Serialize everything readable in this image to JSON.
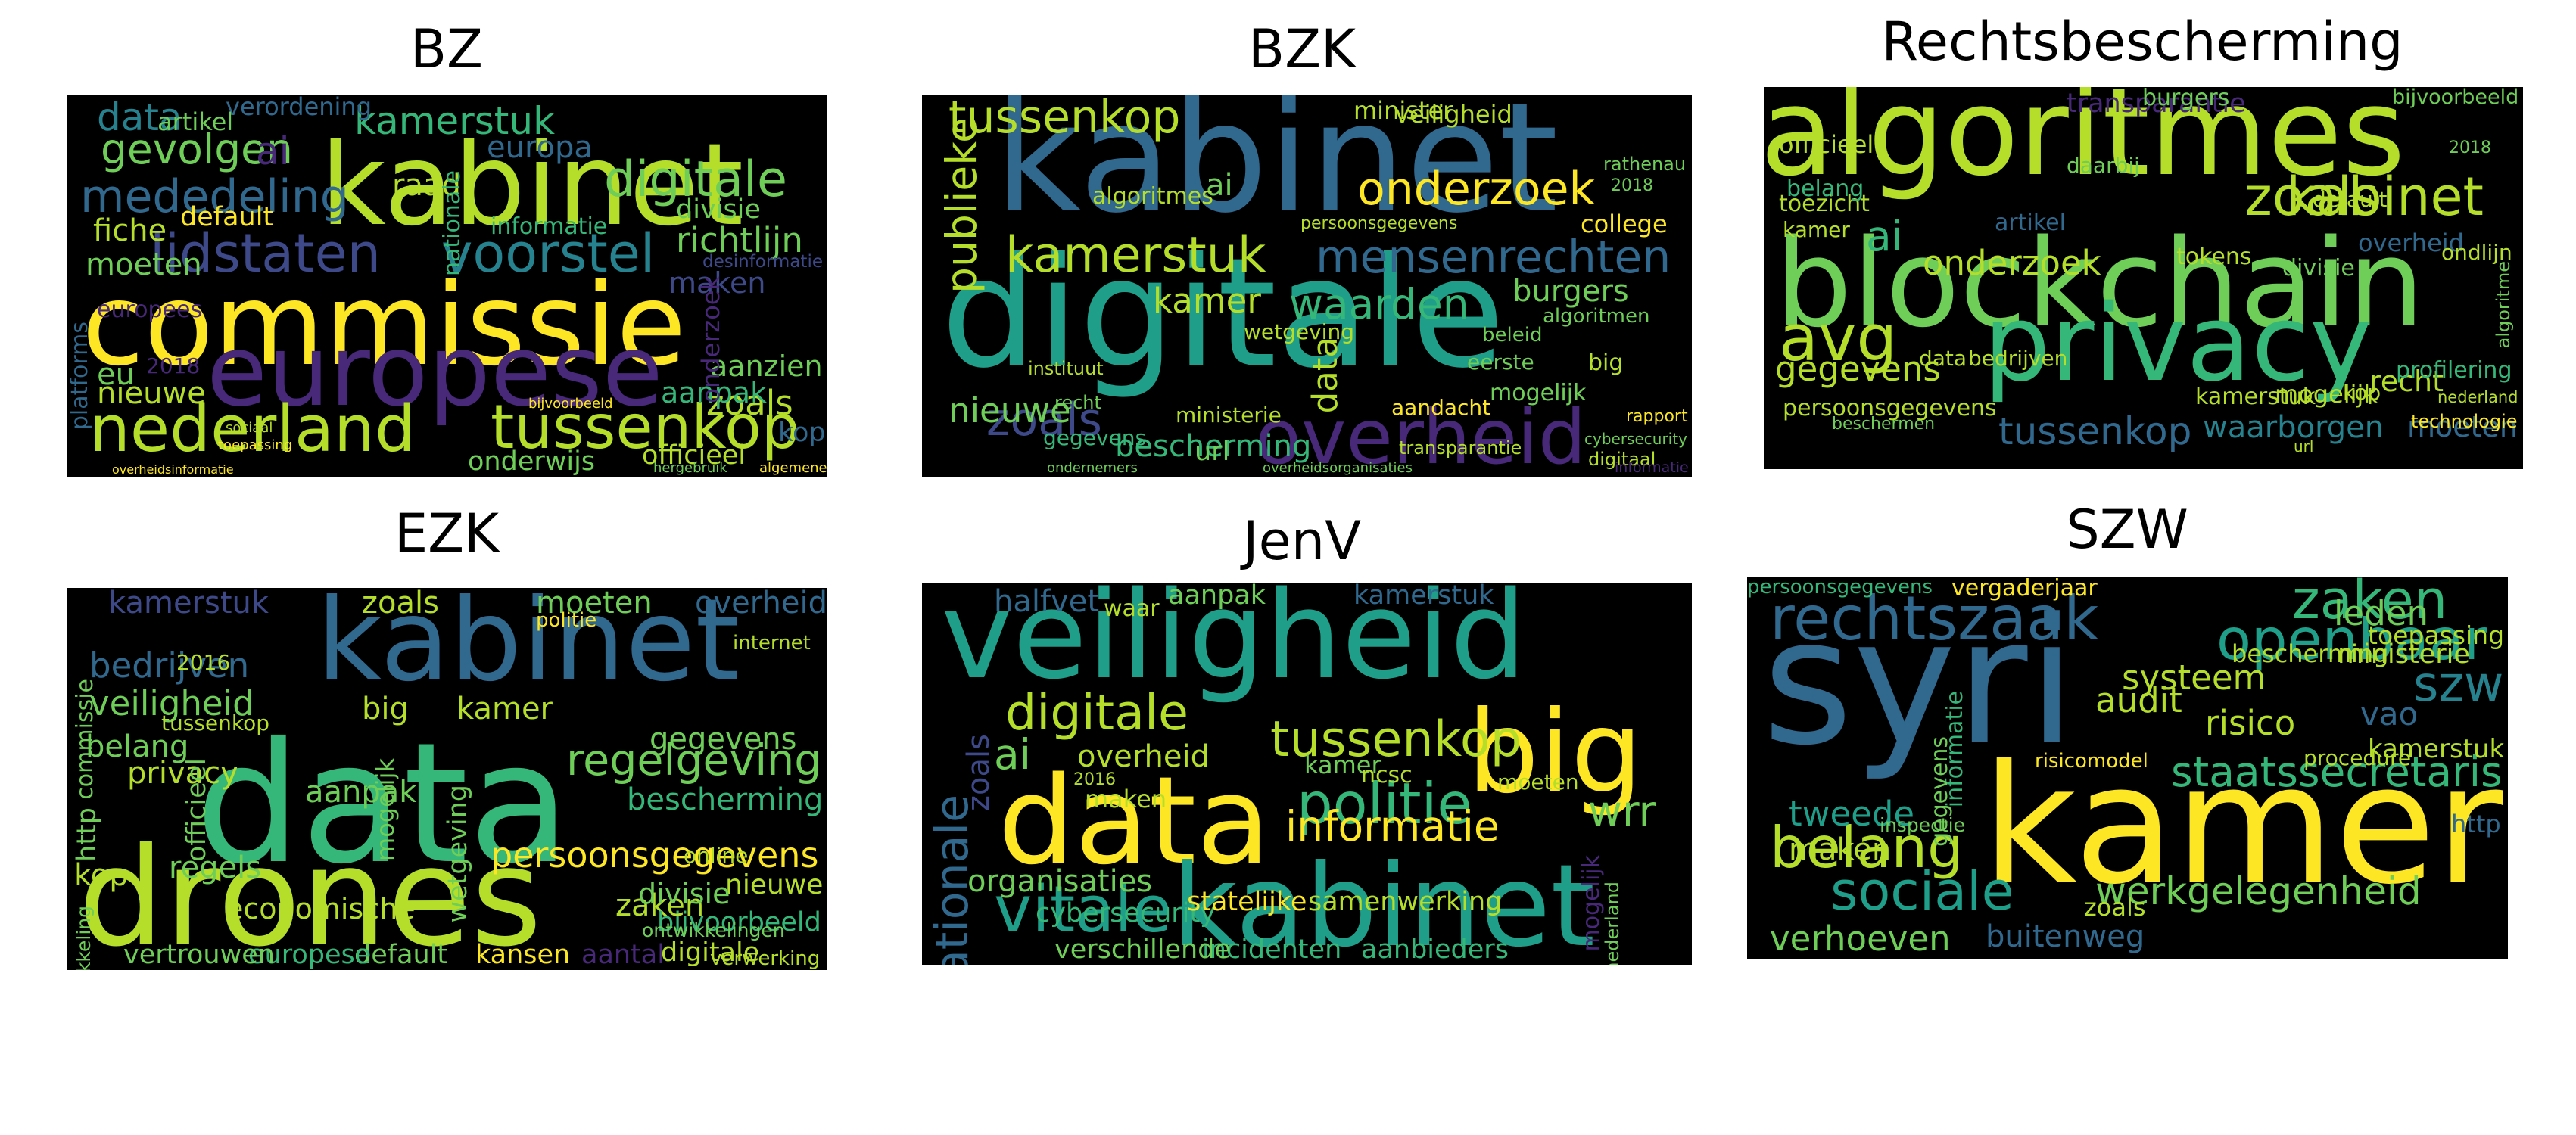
{
  "palette": [
    "#440154",
    "#482878",
    "#3e4989",
    "#31688e",
    "#26828e",
    "#1f9e89",
    "#35b779",
    "#6ece58",
    "#b5de2b",
    "#fde725"
  ],
  "panels": [
    {
      "title": "BZ",
      "words": [
        {
          "t": "commissie",
          "c": "#fde725"
        },
        {
          "t": "kabinet",
          "c": "#b5de2b"
        },
        {
          "t": "europese",
          "c": "#482878"
        },
        {
          "t": "nederland",
          "c": "#b5de2b"
        },
        {
          "t": "tussenkop",
          "c": "#b5de2b"
        },
        {
          "t": "lidstaten",
          "c": "#3e4989"
        },
        {
          "t": "voorstel",
          "c": "#26828e"
        },
        {
          "t": "digitale",
          "c": "#6ece58"
        },
        {
          "t": "mededeling",
          "c": "#31688e"
        },
        {
          "t": "gevolgen",
          "c": "#6ece58"
        },
        {
          "t": "kamerstuk",
          "c": "#35b779"
        },
        {
          "t": "data",
          "c": "#26828e"
        },
        {
          "t": "ai",
          "c": "#482878"
        },
        {
          "t": "raad",
          "c": "#b5de2b"
        },
        {
          "t": "richtlijn",
          "c": "#6ece58"
        },
        {
          "t": "maken",
          "c": "#3e4989"
        },
        {
          "t": "europa",
          "c": "#31688e"
        },
        {
          "t": "fiche",
          "c": "#b5de2b"
        },
        {
          "t": "moeten",
          "c": "#6ece58"
        },
        {
          "t": "platforms",
          "c": "#31688e"
        },
        {
          "t": "zoals",
          "c": "#b5de2b"
        },
        {
          "t": "aanzien",
          "c": "#6ece58"
        },
        {
          "t": "kop",
          "c": "#31688e"
        },
        {
          "t": "nieuwe",
          "c": "#b5de2b"
        },
        {
          "t": "eu",
          "c": "#6ece58"
        },
        {
          "t": "aanpak",
          "c": "#35b779"
        },
        {
          "t": "onderwijs",
          "c": "#6ece58"
        },
        {
          "t": "officieel",
          "c": "#b5de2b"
        },
        {
          "t": "default",
          "c": "#fde725"
        },
        {
          "t": "informatie",
          "c": "#35b779"
        },
        {
          "t": "verordening",
          "c": "#31688e"
        },
        {
          "t": "divisie",
          "c": "#6ece58"
        },
        {
          "t": "nationale",
          "c": "#35b779"
        },
        {
          "t": "desinformatie",
          "c": "#3e4989"
        },
        {
          "t": "onderzoek",
          "c": "#482878"
        },
        {
          "t": "europees",
          "c": "#482878"
        },
        {
          "t": "artikel",
          "c": "#6ece58"
        },
        {
          "t": "2018",
          "c": "#482878"
        },
        {
          "t": "bijvoorbeeld",
          "c": "#fde725"
        },
        {
          "t": "overheidsinformatie",
          "c": "#fde725"
        },
        {
          "t": "hergebruik",
          "c": "#6ece58"
        },
        {
          "t": "algemene",
          "c": "#fde725"
        },
        {
          "t": "sociaal",
          "c": "#b5de2b"
        },
        {
          "t": "toepassing",
          "c": "#fde725"
        }
      ]
    },
    {
      "title": "BZK",
      "words": [
        {
          "t": "kabinet",
          "c": "#31688e"
        },
        {
          "t": "digitale",
          "c": "#1f9e89"
        },
        {
          "t": "overheid",
          "c": "#482878"
        },
        {
          "t": "kamerstuk",
          "c": "#b5de2b"
        },
        {
          "t": "mensenrechten",
          "c": "#31688e"
        },
        {
          "t": "onderzoek",
          "c": "#fde725"
        },
        {
          "t": "tussenkop",
          "c": "#b5de2b"
        },
        {
          "t": "publieke",
          "c": "#b5de2b"
        },
        {
          "t": "zoals",
          "c": "#3e4989"
        },
        {
          "t": "nieuwe",
          "c": "#6ece58"
        },
        {
          "t": "waarden",
          "c": "#35b779"
        },
        {
          "t": "kamer",
          "c": "#b5de2b"
        },
        {
          "t": "data",
          "c": "#b5de2b"
        },
        {
          "t": "burgers",
          "c": "#6ece58"
        },
        {
          "t": "bescherming",
          "c": "#35b779"
        },
        {
          "t": "url",
          "c": "#6ece58"
        },
        {
          "t": "ai",
          "c": "#6ece58"
        },
        {
          "t": "algoritmes",
          "c": "#b5de2b"
        },
        {
          "t": "minister",
          "c": "#b5de2b"
        },
        {
          "t": "veiligheid",
          "c": "#b5de2b"
        },
        {
          "t": "rapport",
          "c": "#fde725"
        },
        {
          "t": "mogelijk",
          "c": "#6ece58"
        },
        {
          "t": "eerste",
          "c": "#6ece58"
        },
        {
          "t": "big",
          "c": "#b5de2b"
        },
        {
          "t": "gegevens",
          "c": "#35b779"
        },
        {
          "t": "beleid",
          "c": "#6ece58"
        },
        {
          "t": "wetgeving",
          "c": "#b5de2b"
        },
        {
          "t": "ministerie",
          "c": "#b5de2b"
        },
        {
          "t": "aandacht",
          "c": "#fde725"
        },
        {
          "t": "transparantie",
          "c": "#b5de2b"
        },
        {
          "t": "rathenau",
          "c": "#6ece58"
        },
        {
          "t": "2018",
          "c": "#6ece58"
        },
        {
          "t": "college",
          "c": "#fde725"
        },
        {
          "t": "algoritmen",
          "c": "#6ece58"
        },
        {
          "t": "persoonsgegevens",
          "c": "#b5de2b"
        },
        {
          "t": "instituut",
          "c": "#b5de2b"
        },
        {
          "t": "recht",
          "c": "#6ece58"
        },
        {
          "t": "digitaal",
          "c": "#b5de2b"
        },
        {
          "t": "cybersecurity",
          "c": "#6ece58"
        },
        {
          "t": "informatie",
          "c": "#482878"
        },
        {
          "t": "overheidsorganisaties",
          "c": "#6ece58"
        },
        {
          "t": "ondernemers",
          "c": "#6ece58"
        }
      ]
    },
    {
      "title": "Rechtsbescherming",
      "words": [
        {
          "t": "algoritmes",
          "c": "#b5de2b"
        },
        {
          "t": "blockchain",
          "c": "#6ece58"
        },
        {
          "t": "privacy",
          "c": "#35b779"
        },
        {
          "t": "zoals",
          "c": "#b5de2b"
        },
        {
          "t": "kabinet",
          "c": "#b5de2b"
        },
        {
          "t": "avg",
          "c": "#b5de2b"
        },
        {
          "t": "ai",
          "c": "#35b779"
        },
        {
          "t": "onderzoek",
          "c": "#b5de2b"
        },
        {
          "t": "gegevens",
          "c": "#b5de2b"
        },
        {
          "t": "tussenkop",
          "c": "#31688e"
        },
        {
          "t": "moeten",
          "c": "#31688e"
        },
        {
          "t": "waarborgen",
          "c": "#26828e"
        },
        {
          "t": "persoonsgegevens",
          "c": "#b5de2b"
        },
        {
          "t": "transparantie",
          "c": "#482878"
        },
        {
          "t": "bijvoorbeeld",
          "c": "#6ece58"
        },
        {
          "t": "officieel",
          "c": "#b5de2b"
        },
        {
          "t": "recht",
          "c": "#b5de2b"
        },
        {
          "t": "mogelijk",
          "c": "#b5de2b"
        },
        {
          "t": "kamerstuk",
          "c": "#b5de2b"
        },
        {
          "t": "tokens",
          "c": "#b5de2b"
        },
        {
          "t": "overheid",
          "c": "#31688e"
        },
        {
          "t": "divisie",
          "c": "#6ece58"
        },
        {
          "t": "technologie",
          "c": "#fde725"
        },
        {
          "t": "profilering",
          "c": "#35b779"
        },
        {
          "t": "kop",
          "c": "#b5de2b"
        },
        {
          "t": "toezicht",
          "c": "#b5de2b"
        },
        {
          "t": "belang",
          "c": "#35b779"
        },
        {
          "t": "burgers",
          "c": "#6ece58"
        },
        {
          "t": "daarbij",
          "c": "#6ece58"
        },
        {
          "t": "data",
          "c": "#b5de2b"
        },
        {
          "t": "bedrijven",
          "c": "#b5de2b"
        },
        {
          "t": "default",
          "c": "#b5de2b"
        },
        {
          "t": "ondlijn",
          "c": "#b5de2b"
        },
        {
          "t": "url",
          "c": "#b5de2b"
        },
        {
          "t": "kamer",
          "c": "#b5de2b"
        },
        {
          "t": "artikel",
          "c": "#31688e"
        },
        {
          "t": "nederland",
          "c": "#b5de2b"
        },
        {
          "t": "algoritme",
          "c": "#6ece58"
        },
        {
          "t": "beschermen",
          "c": "#6ece58"
        },
        {
          "t": "2018",
          "c": "#6ece58"
        }
      ]
    },
    {
      "title": "EZK",
      "words": [
        {
          "t": "kabinet",
          "c": "#31688e"
        },
        {
          "t": "data",
          "c": "#35b779"
        },
        {
          "t": "drones",
          "c": "#b5de2b"
        },
        {
          "t": "regelgeving",
          "c": "#6ece58"
        },
        {
          "t": "persoonsgegevens",
          "c": "#fde725"
        },
        {
          "t": "bedrijven",
          "c": "#31688e"
        },
        {
          "t": "veiligheid",
          "c": "#6ece58"
        },
        {
          "t": "kamerstuk",
          "c": "#3e4989"
        },
        {
          "t": "zoals",
          "c": "#b5de2b"
        },
        {
          "t": "moeten",
          "c": "#6ece58"
        },
        {
          "t": "overheid",
          "c": "#31688e"
        },
        {
          "t": "belang",
          "c": "#6ece58"
        },
        {
          "t": "big",
          "c": "#b5de2b"
        },
        {
          "t": "kamer",
          "c": "#b5de2b"
        },
        {
          "t": "gegevens",
          "c": "#6ece58"
        },
        {
          "t": "bescherming",
          "c": "#35b779"
        },
        {
          "t": "aanpak",
          "c": "#6ece58"
        },
        {
          "t": "privacy",
          "c": "#b5de2b"
        },
        {
          "t": "http",
          "c": "#6ece58"
        },
        {
          "t": "officieel",
          "c": "#6ece58"
        },
        {
          "t": "kop",
          "c": "#b5de2b"
        },
        {
          "t": "regels",
          "c": "#6ece58"
        },
        {
          "t": "economische",
          "c": "#b5de2b"
        },
        {
          "t": "mogelijk",
          "c": "#6ece58"
        },
        {
          "t": "wetgeving",
          "c": "#6ece58"
        },
        {
          "t": "zaken",
          "c": "#b5de2b"
        },
        {
          "t": "nieuwe",
          "c": "#b5de2b"
        },
        {
          "t": "divisie",
          "c": "#6ece58"
        },
        {
          "t": "bijvoorbeeld",
          "c": "#35b779"
        },
        {
          "t": "digitale",
          "c": "#b5de2b"
        },
        {
          "t": "verwerking",
          "c": "#b5de2b"
        },
        {
          "t": "kansen",
          "c": "#fde725"
        },
        {
          "t": "aantal",
          "c": "#482878"
        },
        {
          "t": "default",
          "c": "#6ece58"
        },
        {
          "t": "europese",
          "c": "#35b779"
        },
        {
          "t": "vertrouwen",
          "c": "#6ece58"
        },
        {
          "t": "ontwikkeling",
          "c": "#6ece58"
        },
        {
          "t": "commissie",
          "c": "#6ece58"
        },
        {
          "t": "ontwikkelingen",
          "c": "#6ece58"
        },
        {
          "t": "internet",
          "c": "#b5de2b"
        },
        {
          "t": "2016",
          "c": "#b5de2b"
        },
        {
          "t": "tussenkop",
          "c": "#b5de2b"
        },
        {
          "t": "politie",
          "c": "#fde725"
        },
        {
          "t": "online",
          "c": "#b5de2b"
        }
      ]
    },
    {
      "title": "JenV",
      "words": [
        {
          "t": "veiligheid",
          "c": "#1f9e89"
        },
        {
          "t": "data",
          "c": "#fde725"
        },
        {
          "t": "kabinet",
          "c": "#1f9e89"
        },
        {
          "t": "big",
          "c": "#fde725"
        },
        {
          "t": "digitale",
          "c": "#b5de2b"
        },
        {
          "t": "politie",
          "c": "#35b779"
        },
        {
          "t": "tussenkop",
          "c": "#b5de2b"
        },
        {
          "t": "informatie",
          "c": "#fde725"
        },
        {
          "t": "vitale",
          "c": "#1f9e89"
        },
        {
          "t": "nationale",
          "c": "#31688e"
        },
        {
          "t": "wrr",
          "c": "#6ece58"
        },
        {
          "t": "ai",
          "c": "#6ece58"
        },
        {
          "t": "zoals",
          "c": "#3e4989"
        },
        {
          "t": "overheid",
          "c": "#b5de2b"
        },
        {
          "t": "organisaties",
          "c": "#6ece58"
        },
        {
          "t": "cybersecurity",
          "c": "#35b779"
        },
        {
          "t": "statelijke",
          "c": "#fde725"
        },
        {
          "t": "samenwerking",
          "c": "#b5de2b"
        },
        {
          "t": "incidenten",
          "c": "#35b779"
        },
        {
          "t": "aanbieders",
          "c": "#35b779"
        },
        {
          "t": "verschillende",
          "c": "#6ece58"
        },
        {
          "t": "halfvet",
          "c": "#31688e"
        },
        {
          "t": "aanpak",
          "c": "#6ece58"
        },
        {
          "t": "kamerstuk",
          "c": "#31688e"
        },
        {
          "t": "maken",
          "c": "#b5de2b"
        },
        {
          "t": "kamer",
          "c": "#6ece58"
        },
        {
          "t": "ncsc",
          "c": "#b5de2b"
        },
        {
          "t": "moeten",
          "c": "#b5de2b"
        },
        {
          "t": "mogelijk",
          "c": "#482878"
        },
        {
          "t": "nederland",
          "c": "#6ece58"
        },
        {
          "t": "waar",
          "c": "#b5de2b"
        },
        {
          "t": "2016",
          "c": "#b5de2b"
        }
      ]
    },
    {
      "title": "SZW",
      "words": [
        {
          "t": "syri",
          "c": "#31688e"
        },
        {
          "t": "kamer",
          "c": "#fde725"
        },
        {
          "t": "staatssecretaris",
          "c": "#35b779"
        },
        {
          "t": "rechtszaak",
          "c": "#31688e"
        },
        {
          "t": "openbaar",
          "c": "#1f9e89"
        },
        {
          "t": "zaken",
          "c": "#35b779"
        },
        {
          "t": "szw",
          "c": "#26828e"
        },
        {
          "t": "sociale",
          "c": "#1f9e89"
        },
        {
          "t": "belang",
          "c": "#b5de2b"
        },
        {
          "t": "werkgelegenheid",
          "c": "#6ece58"
        },
        {
          "t": "verhoeven",
          "c": "#6ece58"
        },
        {
          "t": "buitenweg",
          "c": "#31688e"
        },
        {
          "t": "audit",
          "c": "#b5de2b"
        },
        {
          "t": "risico",
          "c": "#b5de2b"
        },
        {
          "t": "systeem",
          "c": "#b5de2b"
        },
        {
          "t": "leden",
          "c": "#6ece58"
        },
        {
          "t": "toepassing",
          "c": "#b5de2b"
        },
        {
          "t": "bescherming",
          "c": "#b5de2b"
        },
        {
          "t": "ministerie",
          "c": "#b5de2b"
        },
        {
          "t": "informatie",
          "c": "#35b779"
        },
        {
          "t": "tweede",
          "c": "#1f9e89"
        },
        {
          "t": "maken",
          "c": "#b5de2b"
        },
        {
          "t": "gegevens",
          "c": "#6ece58"
        },
        {
          "t": "vao",
          "c": "#31688e"
        },
        {
          "t": "kamerstuk",
          "c": "#b5de2b"
        },
        {
          "t": "vergaderjaar",
          "c": "#fde725"
        },
        {
          "t": "persoonsgegevens",
          "c": "#35b779"
        },
        {
          "t": "risicomodel",
          "c": "#fde725"
        },
        {
          "t": "http",
          "c": "#31688e"
        },
        {
          "t": "zoals",
          "c": "#b5de2b"
        },
        {
          "t": "inspectie",
          "c": "#6ece58"
        },
        {
          "t": "procedure",
          "c": "#b5de2b"
        }
      ]
    }
  ]
}
